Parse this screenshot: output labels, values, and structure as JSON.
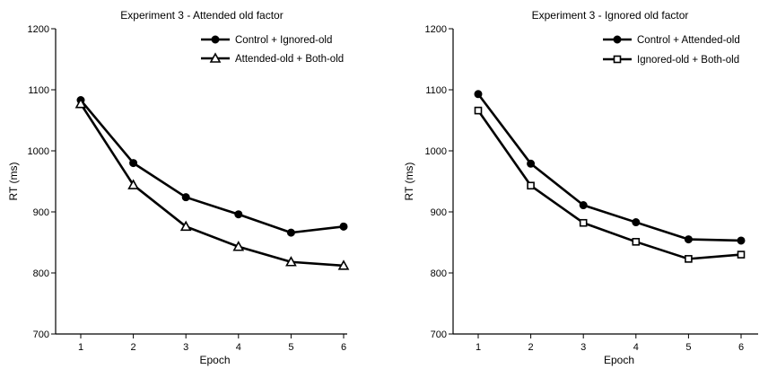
{
  "chart_data": [
    {
      "type": "line",
      "title": "Experiment 3 - Attended old factor",
      "xlabel": "Epoch",
      "ylabel": "RT (ms)",
      "x": [
        1,
        2,
        3,
        4,
        5,
        6
      ],
      "ylim": [
        700,
        1200
      ],
      "yticks": [
        700,
        800,
        900,
        1000,
        1100,
        1200
      ],
      "grid": false,
      "legend_position": "top-right",
      "series": [
        {
          "name": "Control + Ignored-old",
          "marker": "filled-circle",
          "values": [
            1083,
            980,
            924,
            896,
            866,
            876
          ]
        },
        {
          "name": "Attended-old + Both-old",
          "marker": "open-triangle",
          "values": [
            1077,
            944,
            876,
            843,
            818,
            812
          ]
        }
      ]
    },
    {
      "type": "line",
      "title": "Experiment 3 - Ignored old factor",
      "xlabel": "Epoch",
      "ylabel": "RT (ms)",
      "x": [
        1,
        2,
        3,
        4,
        5,
        6
      ],
      "ylim": [
        700,
        1200
      ],
      "yticks": [
        700,
        800,
        900,
        1000,
        1100,
        1200
      ],
      "grid": false,
      "legend_position": "top-right",
      "series": [
        {
          "name": "Control + Attended-old",
          "marker": "filled-circle",
          "values": [
            1093,
            979,
            911,
            883,
            855,
            853
          ]
        },
        {
          "name": "Ignored-old + Both-old",
          "marker": "open-square",
          "values": [
            1066,
            943,
            882,
            851,
            823,
            830
          ]
        }
      ]
    }
  ]
}
